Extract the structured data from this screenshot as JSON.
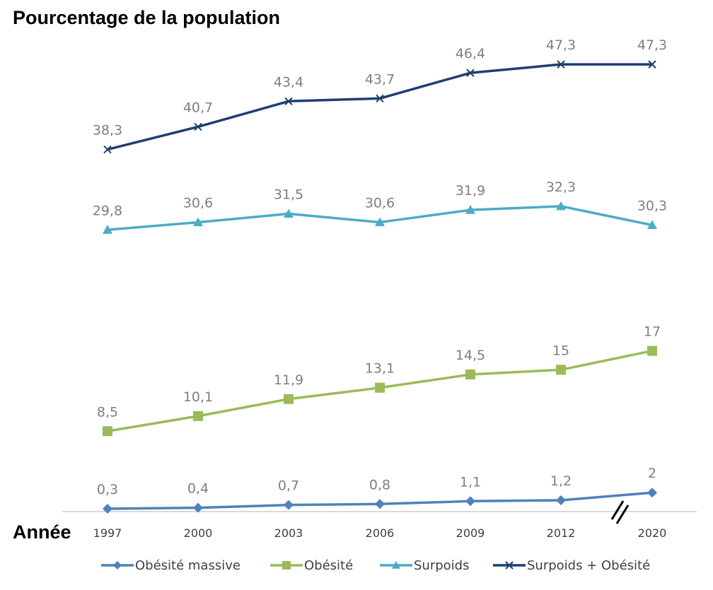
{
  "chart_data": {
    "type": "line",
    "title": "Pourcentage de la population",
    "xlabel": "Année",
    "ylabel": "",
    "categories": [
      "1997",
      "2000",
      "2003",
      "2006",
      "2009",
      "2012",
      "2020"
    ],
    "ylim": [
      0,
      50
    ],
    "grid": false,
    "axis_break": "between 2012 and 2020",
    "legend_position": "bottom",
    "series": [
      {
        "name": "Obésité massive",
        "marker": "diamond",
        "color": "#4f81bd",
        "values": [
          0.3,
          0.4,
          0.7,
          0.8,
          1.1,
          1.2,
          2
        ],
        "labels": [
          "0,3",
          "0,4",
          "0,7",
          "0,8",
          "1,1",
          "1,2",
          "2"
        ]
      },
      {
        "name": "Obésité",
        "marker": "square",
        "color": "#9bbb59",
        "values": [
          8.5,
          10.1,
          11.9,
          13.1,
          14.5,
          15,
          17
        ],
        "labels": [
          "8,5",
          "10,1",
          "11,9",
          "13,1",
          "14,5",
          "15",
          "17"
        ]
      },
      {
        "name": "Surpoids",
        "marker": "triangle",
        "color": "#4bacc6",
        "values": [
          29.8,
          30.6,
          31.5,
          30.6,
          31.9,
          32.3,
          30.3
        ],
        "labels": [
          "29,8",
          "30,6",
          "31,5",
          "30,6",
          "31,9",
          "32,3",
          "30,3"
        ]
      },
      {
        "name": "Surpoids + Obésité",
        "marker": "x",
        "color": "#1f3f6e",
        "values": [
          38.3,
          40.7,
          43.4,
          43.7,
          46.4,
          47.3,
          47.3
        ],
        "labels": [
          "38,3",
          "40,7",
          "43,4",
          "43,7",
          "46,4",
          "47,3",
          "47,3"
        ]
      }
    ]
  }
}
